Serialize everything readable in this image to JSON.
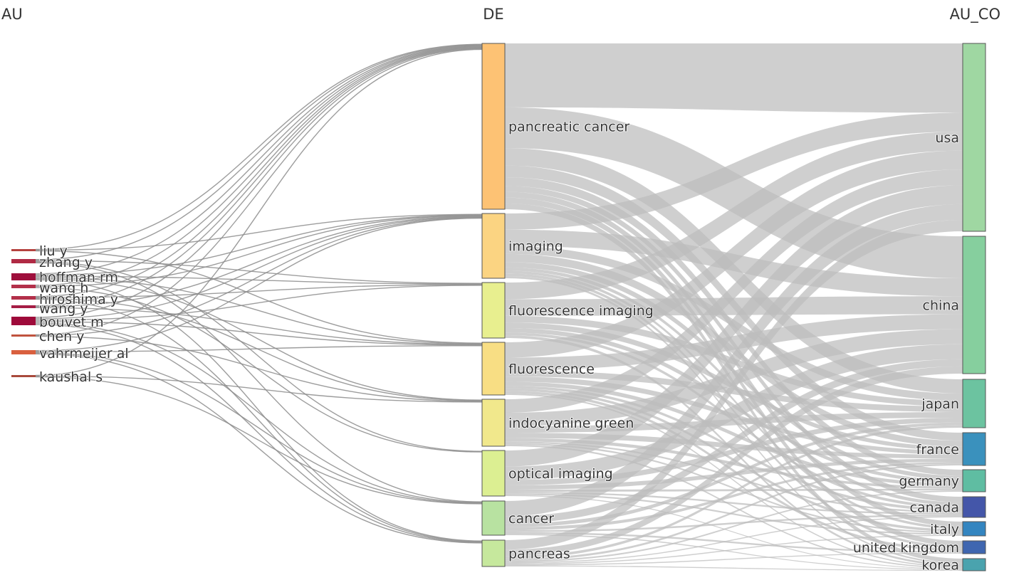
{
  "columns": {
    "left": "AU",
    "middle": "DE",
    "right": "AU_CO"
  },
  "chart_data": {
    "type": "sankey",
    "colors": {
      "link": "#bdbdbd",
      "au": "#a3123a",
      "au_light": "#d9534f",
      "de_orange": "#fdc06f",
      "de_yellow": "#fad47e",
      "de_lime": "#e6ee8e",
      "de_green": "#c9e89a",
      "co_green": "#8fd3a0",
      "co_teal": "#5cbfa2",
      "co_blue": "#3a8fc0",
      "co_indigo": "#3f56a8"
    },
    "nodes": {
      "AU": [
        {
          "id": "liu y",
          "label": "liu y",
          "color": "#b5423f"
        },
        {
          "id": "zhang y",
          "label": "zhang y",
          "color": "#b02a44"
        },
        {
          "id": "hoffman rm",
          "label": "hoffman rm",
          "color": "#9e0f3c"
        },
        {
          "id": "wang h",
          "label": "wang h",
          "color": "#b3304a"
        },
        {
          "id": "hiroshima y",
          "label": "hiroshima y",
          "color": "#b3304a"
        },
        {
          "id": "wang y",
          "label": "wang y",
          "color": "#a51e45"
        },
        {
          "id": "bouvet m",
          "label": "bouvet m",
          "color": "#9e0a3a"
        },
        {
          "id": "chen y",
          "label": "chen y",
          "color": "#c0533e"
        },
        {
          "id": "vahrmeijer al",
          "label": "vahrmeijer al",
          "color": "#d9603f"
        },
        {
          "id": "kaushal s",
          "label": "kaushal s",
          "color": "#a84a3c"
        }
      ],
      "DE": [
        {
          "id": "pancreatic cancer",
          "label": "pancreatic cancer",
          "color": "#fdc274"
        },
        {
          "id": "imaging",
          "label": "imaging",
          "color": "#fbd482"
        },
        {
          "id": "fluorescence imaging",
          "label": "fluorescence imaging",
          "color": "#e8ef8f"
        },
        {
          "id": "fluorescence",
          "label": "fluorescence",
          "color": "#f8de84"
        },
        {
          "id": "indocyanine green",
          "label": "indocyanine green",
          "color": "#f1e88c"
        },
        {
          "id": "optical imaging",
          "label": "optical imaging",
          "color": "#dcef92"
        },
        {
          "id": "cancer",
          "label": "cancer",
          "color": "#b8e2a1"
        },
        {
          "id": "pancreas",
          "label": "pancreas",
          "color": "#c6e89d"
        }
      ],
      "AU_CO": [
        {
          "id": "usa",
          "label": "usa",
          "color": "#9fd7a2"
        },
        {
          "id": "china",
          "label": "china",
          "color": "#86cf9e"
        },
        {
          "id": "japan",
          "label": "japan",
          "color": "#6cc3a0"
        },
        {
          "id": "france",
          "label": "france",
          "color": "#3a91bd"
        },
        {
          "id": "germany",
          "label": "germany",
          "color": "#5fbda2"
        },
        {
          "id": "canada",
          "label": "canada",
          "color": "#4456a9"
        },
        {
          "id": "italy",
          "label": "italy",
          "color": "#3385c0"
        },
        {
          "id": "united kingdom",
          "label": "united kingdom",
          "color": "#3f66b0"
        },
        {
          "id": "korea",
          "label": "korea",
          "color": "#4aa3ae"
        }
      ]
    },
    "links_au_de": [
      [
        "liu y",
        "pancreatic cancer",
        1
      ],
      [
        "liu y",
        "imaging",
        1
      ],
      [
        "liu y",
        "fluorescence",
        1
      ],
      [
        "zhang y",
        "pancreatic cancer",
        1
      ],
      [
        "zhang y",
        "fluorescence imaging",
        1
      ],
      [
        "zhang y",
        "optical imaging",
        1
      ],
      [
        "zhang y",
        "cancer",
        1
      ],
      [
        "hoffman rm",
        "pancreatic cancer",
        1
      ],
      [
        "hoffman rm",
        "imaging",
        1
      ],
      [
        "hoffman rm",
        "fluorescence imaging",
        1
      ],
      [
        "hoffman rm",
        "fluorescence",
        1
      ],
      [
        "hoffman rm",
        "indocyanine green",
        1
      ],
      [
        "hoffman rm",
        "pancreas",
        1
      ],
      [
        "wang h",
        "pancreatic cancer",
        1
      ],
      [
        "wang h",
        "imaging",
        1
      ],
      [
        "wang h",
        "optical imaging",
        1
      ],
      [
        "hiroshima y",
        "pancreatic cancer",
        1
      ],
      [
        "hiroshima y",
        "fluorescence imaging",
        1
      ],
      [
        "hiroshima y",
        "indocyanine green",
        1
      ],
      [
        "hiroshima y",
        "pancreas",
        1
      ],
      [
        "wang y",
        "pancreatic cancer",
        1
      ],
      [
        "wang y",
        "imaging",
        1
      ],
      [
        "wang y",
        "fluorescence",
        1
      ],
      [
        "bouvet m",
        "pancreatic cancer",
        1
      ],
      [
        "bouvet m",
        "imaging",
        1
      ],
      [
        "bouvet m",
        "fluorescence imaging",
        1
      ],
      [
        "bouvet m",
        "fluorescence",
        1
      ],
      [
        "bouvet m",
        "cancer",
        1
      ],
      [
        "bouvet m",
        "pancreas",
        1
      ],
      [
        "chen y",
        "pancreatic cancer",
        1
      ],
      [
        "chen y",
        "imaging",
        1
      ],
      [
        "chen y",
        "indocyanine green",
        1
      ],
      [
        "vahrmeijer al",
        "imaging",
        1
      ],
      [
        "vahrmeijer al",
        "fluorescence",
        1
      ],
      [
        "vahrmeijer al",
        "cancer",
        1
      ],
      [
        "vahrmeijer al",
        "pancreas",
        1
      ],
      [
        "kaushal s",
        "pancreatic cancer",
        1
      ],
      [
        "kaushal s",
        "indocyanine green",
        1
      ],
      [
        "kaushal s",
        "cancer",
        1
      ]
    ],
    "links_de_co": [
      [
        "pancreatic cancer",
        "usa",
        11
      ],
      [
        "pancreatic cancer",
        "china",
        7
      ],
      [
        "pancreatic cancer",
        "japan",
        3
      ],
      [
        "pancreatic cancer",
        "france",
        2
      ],
      [
        "pancreatic cancer",
        "germany",
        1.5
      ],
      [
        "pancreatic cancer",
        "canada",
        1
      ],
      [
        "pancreatic cancer",
        "italy",
        1
      ],
      [
        "pancreatic cancer",
        "united kingdom",
        1
      ],
      [
        "pancreatic cancer",
        "korea",
        1
      ],
      [
        "imaging",
        "usa",
        3
      ],
      [
        "imaging",
        "china",
        3
      ],
      [
        "imaging",
        "japan",
        1.5
      ],
      [
        "imaging",
        "france",
        1.5
      ],
      [
        "imaging",
        "germany",
        1
      ],
      [
        "imaging",
        "canada",
        0.6
      ],
      [
        "imaging",
        "italy",
        0.5
      ],
      [
        "imaging",
        "united kingdom",
        0.5
      ],
      [
        "imaging",
        "korea",
        0.4
      ],
      [
        "fluorescence imaging",
        "usa",
        3
      ],
      [
        "fluorescence imaging",
        "china",
        3
      ],
      [
        "fluorescence imaging",
        "japan",
        1.2
      ],
      [
        "fluorescence imaging",
        "france",
        1
      ],
      [
        "fluorescence imaging",
        "germany",
        0.8
      ],
      [
        "fluorescence imaging",
        "canada",
        0.5
      ],
      [
        "fluorescence imaging",
        "korea",
        0.5
      ],
      [
        "fluorescence",
        "usa",
        3
      ],
      [
        "fluorescence",
        "china",
        2.5
      ],
      [
        "fluorescence",
        "japan",
        1.2
      ],
      [
        "fluorescence",
        "france",
        1
      ],
      [
        "fluorescence",
        "germany",
        0.8
      ],
      [
        "fluorescence",
        "canada",
        0.5
      ],
      [
        "fluorescence",
        "italy",
        0.5
      ],
      [
        "fluorescence",
        "united kingdom",
        0.5
      ],
      [
        "fluorescence",
        "korea",
        0.3
      ],
      [
        "indocyanine green",
        "usa",
        2.5
      ],
      [
        "indocyanine green",
        "china",
        2.5
      ],
      [
        "indocyanine green",
        "japan",
        1.2
      ],
      [
        "indocyanine green",
        "france",
        1
      ],
      [
        "indocyanine green",
        "germany",
        0.6
      ],
      [
        "indocyanine green",
        "canada",
        0.3
      ],
      [
        "indocyanine green",
        "italy",
        0.3
      ],
      [
        "indocyanine green",
        "korea",
        0.3
      ],
      [
        "optical imaging",
        "usa",
        3
      ],
      [
        "optical imaging",
        "china",
        2.5
      ],
      [
        "optical imaging",
        "japan",
        1
      ],
      [
        "optical imaging",
        "france",
        0.8
      ],
      [
        "optical imaging",
        "germany",
        0.4
      ],
      [
        "optical imaging",
        "canada",
        0.3
      ],
      [
        "optical imaging",
        "italy",
        0.3
      ],
      [
        "optical imaging",
        "korea",
        0.2
      ],
      [
        "cancer",
        "usa",
        2.5
      ],
      [
        "cancer",
        "china",
        1.2
      ],
      [
        "cancer",
        "japan",
        0.6
      ],
      [
        "cancer",
        "france",
        0.5
      ],
      [
        "cancer",
        "canada",
        0.3
      ],
      [
        "cancer",
        "united kingdom",
        0.3
      ],
      [
        "cancer",
        "korea",
        0.2
      ],
      [
        "pancreas",
        "usa",
        1.8
      ],
      [
        "pancreas",
        "china",
        1.2
      ],
      [
        "pancreas",
        "japan",
        0.5
      ],
      [
        "pancreas",
        "france",
        0.4
      ],
      [
        "pancreas",
        "germany",
        0.3
      ],
      [
        "pancreas",
        "canada",
        0.2
      ],
      [
        "pancreas",
        "italy",
        0.2
      ],
      [
        "pancreas",
        "united kingdom",
        0.2
      ],
      [
        "pancreas",
        "korea",
        0.2
      ]
    ]
  }
}
